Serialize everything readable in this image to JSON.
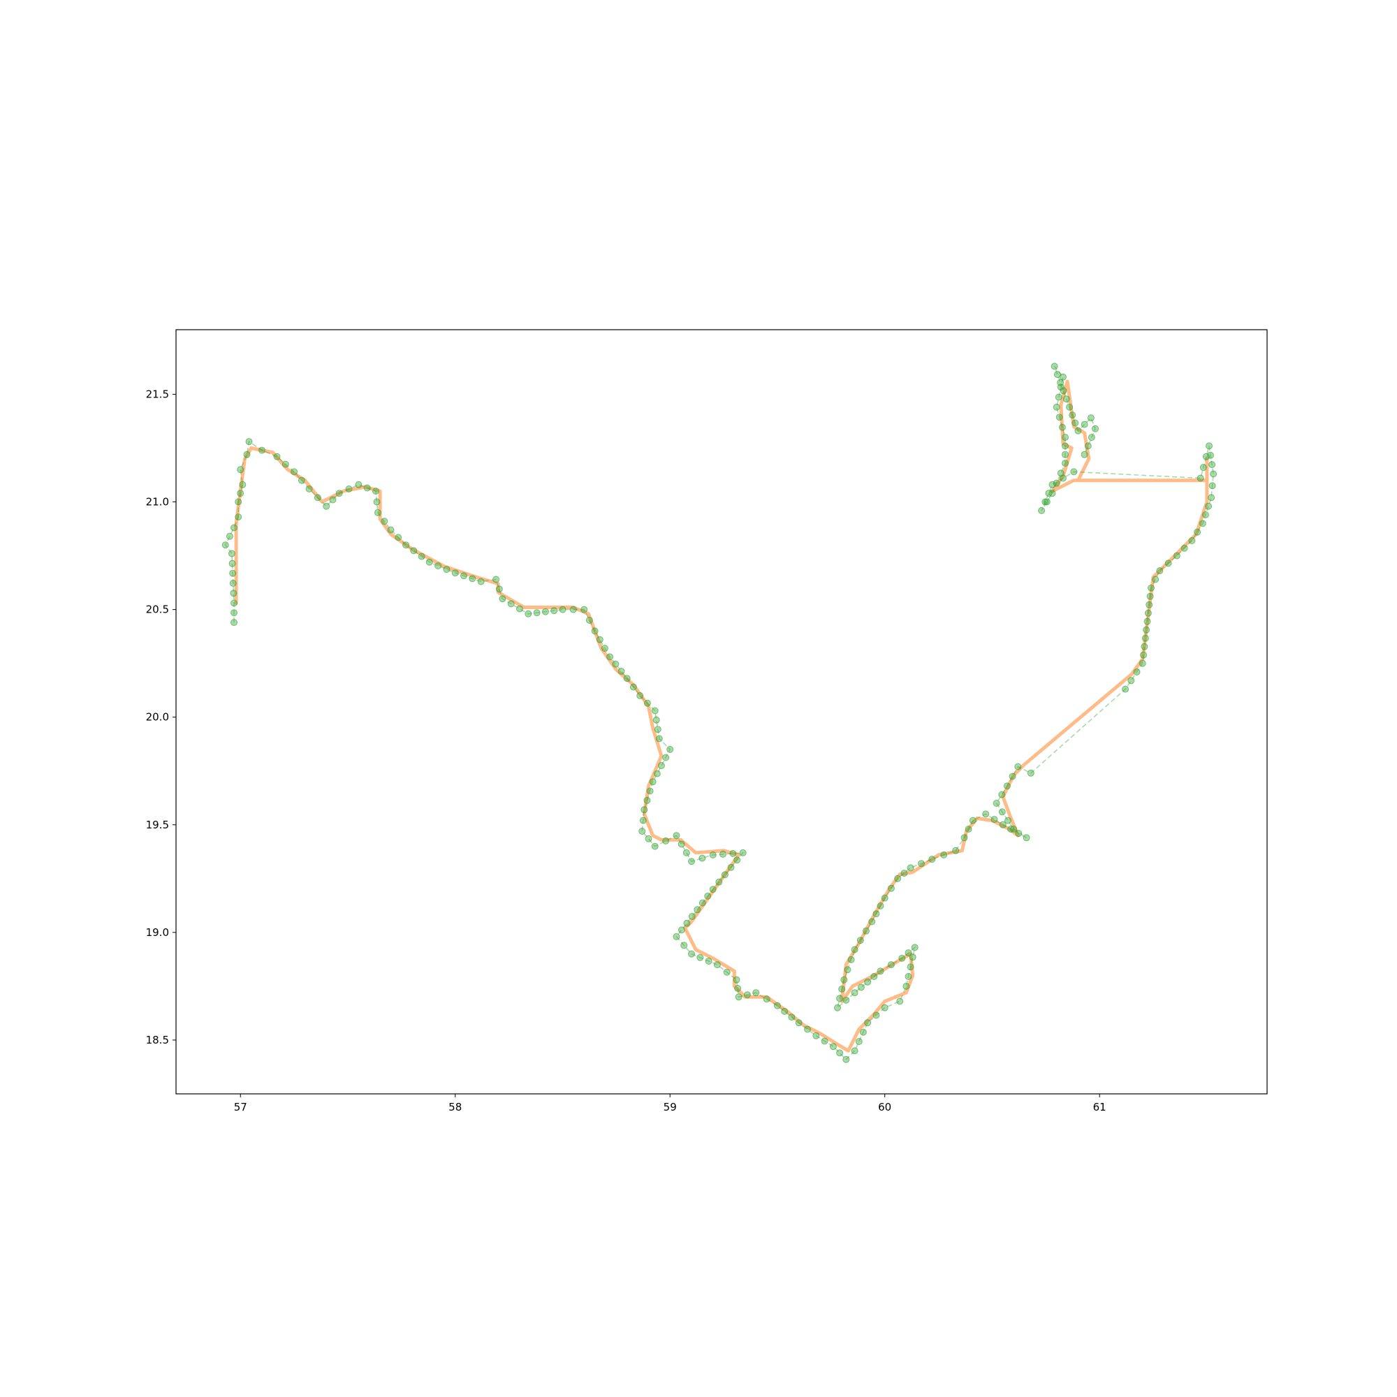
{
  "chart_data": {
    "type": "line",
    "title": "",
    "xlabel": "",
    "ylabel": "",
    "xlim": [
      56.7,
      61.78
    ],
    "ylim": [
      18.25,
      21.8
    ],
    "grid": false,
    "legend": "none",
    "x_ticks": [
      "57",
      "58",
      "59",
      "60",
      "61"
    ],
    "y_ticks": [
      "18.5",
      "19.0",
      "19.5",
      "20.0",
      "20.5",
      "21.0",
      "21.5"
    ],
    "series": [
      {
        "role": "smoothed-track",
        "color": "#ffbb88",
        "style": "solid",
        "points": [
          [
            56.98,
            20.53
          ],
          [
            56.98,
            20.9
          ],
          [
            57.0,
            21.05
          ],
          [
            57.02,
            21.2
          ],
          [
            57.05,
            21.25
          ],
          [
            57.15,
            21.23
          ],
          [
            57.22,
            21.15
          ],
          [
            57.3,
            21.1
          ],
          [
            57.38,
            21.0
          ],
          [
            57.48,
            21.05
          ],
          [
            57.58,
            21.07
          ],
          [
            57.65,
            21.05
          ],
          [
            57.65,
            20.92
          ],
          [
            57.7,
            20.85
          ],
          [
            57.8,
            20.78
          ],
          [
            57.95,
            20.7
          ],
          [
            58.1,
            20.65
          ],
          [
            58.2,
            20.62
          ],
          [
            58.2,
            20.58
          ],
          [
            58.32,
            20.51
          ],
          [
            58.55,
            20.51
          ],
          [
            58.62,
            20.48
          ],
          [
            58.68,
            20.32
          ],
          [
            58.75,
            20.22
          ],
          [
            58.83,
            20.15
          ],
          [
            58.9,
            20.05
          ],
          [
            58.92,
            19.95
          ],
          [
            58.96,
            19.82
          ],
          [
            58.9,
            19.68
          ],
          [
            58.88,
            19.55
          ],
          [
            58.92,
            19.45
          ],
          [
            58.96,
            19.43
          ],
          [
            59.05,
            19.43
          ],
          [
            59.12,
            19.37
          ],
          [
            59.25,
            19.38
          ],
          [
            59.32,
            19.36
          ],
          [
            59.1,
            19.05
          ],
          [
            59.07,
            19.02
          ],
          [
            59.12,
            18.92
          ],
          [
            59.2,
            18.88
          ],
          [
            59.3,
            18.82
          ],
          [
            59.3,
            18.75
          ],
          [
            59.35,
            18.7
          ],
          [
            59.45,
            18.7
          ],
          [
            59.55,
            18.63
          ],
          [
            59.62,
            18.57
          ],
          [
            59.7,
            18.53
          ],
          [
            59.78,
            18.48
          ],
          [
            59.83,
            18.45
          ],
          [
            59.88,
            18.55
          ],
          [
            59.95,
            18.62
          ],
          [
            60.0,
            18.68
          ],
          [
            60.05,
            18.7
          ],
          [
            60.1,
            18.72
          ],
          [
            60.13,
            18.8
          ],
          [
            60.12,
            18.9
          ],
          [
            60.05,
            18.86
          ],
          [
            59.95,
            18.8
          ],
          [
            59.85,
            18.75
          ],
          [
            59.8,
            18.68
          ],
          [
            59.82,
            18.85
          ],
          [
            59.88,
            18.95
          ],
          [
            59.95,
            19.08
          ],
          [
            60.02,
            19.2
          ],
          [
            60.07,
            19.27
          ],
          [
            60.13,
            19.28
          ],
          [
            60.25,
            19.36
          ],
          [
            60.36,
            19.38
          ],
          [
            60.38,
            19.47
          ],
          [
            60.43,
            19.53
          ],
          [
            60.5,
            19.52
          ],
          [
            60.58,
            19.48
          ],
          [
            60.62,
            19.45
          ],
          [
            60.58,
            19.55
          ],
          [
            60.55,
            19.63
          ],
          [
            60.6,
            19.73
          ],
          [
            60.65,
            19.78
          ],
          [
            61.15,
            20.2
          ],
          [
            61.2,
            20.27
          ],
          [
            61.25,
            20.65
          ],
          [
            61.3,
            20.7
          ],
          [
            61.4,
            20.8
          ],
          [
            61.45,
            20.85
          ],
          [
            61.5,
            21.0
          ],
          [
            61.5,
            21.1
          ],
          [
            61.5,
            21.2
          ],
          [
            61.5,
            21.1
          ],
          [
            61.45,
            21.1
          ],
          [
            60.95,
            21.1
          ],
          [
            60.88,
            21.1
          ],
          [
            60.78,
            21.05
          ],
          [
            60.83,
            21.12
          ],
          [
            60.87,
            21.25
          ],
          [
            60.83,
            21.27
          ],
          [
            60.82,
            21.45
          ],
          [
            60.85,
            21.56
          ],
          [
            60.88,
            21.35
          ],
          [
            60.93,
            21.32
          ],
          [
            60.95,
            21.2
          ],
          [
            60.9,
            21.1
          ]
        ]
      },
      {
        "role": "raw-gps-track",
        "color": "#2ca02c",
        "style": "dashed",
        "points": [
          [
            56.97,
            20.44
          ],
          [
            56.97,
            20.53
          ],
          [
            56.96,
            20.76
          ],
          [
            56.93,
            20.8
          ],
          [
            56.97,
            20.88
          ],
          [
            56.99,
            20.93
          ],
          [
            56.99,
            21.0
          ],
          [
            57.01,
            21.08
          ],
          [
            57.0,
            21.15
          ],
          [
            57.03,
            21.22
          ],
          [
            57.04,
            21.28
          ],
          [
            57.1,
            21.24
          ],
          [
            57.17,
            21.21
          ],
          [
            57.25,
            21.14
          ],
          [
            57.32,
            21.06
          ],
          [
            57.4,
            20.98
          ],
          [
            57.46,
            21.04
          ],
          [
            57.55,
            21.08
          ],
          [
            57.63,
            21.05
          ],
          [
            57.64,
            20.95
          ],
          [
            57.7,
            20.87
          ],
          [
            57.77,
            20.8
          ],
          [
            57.88,
            20.72
          ],
          [
            58.0,
            20.67
          ],
          [
            58.12,
            20.63
          ],
          [
            58.19,
            20.64
          ],
          [
            58.22,
            20.55
          ],
          [
            58.34,
            20.48
          ],
          [
            58.5,
            20.5
          ],
          [
            58.6,
            20.5
          ],
          [
            58.65,
            20.4
          ],
          [
            58.72,
            20.28
          ],
          [
            58.8,
            20.18
          ],
          [
            58.86,
            20.1
          ],
          [
            58.93,
            20.03
          ],
          [
            58.95,
            19.9
          ],
          [
            59.0,
            19.85
          ],
          [
            58.92,
            19.7
          ],
          [
            58.88,
            19.57
          ],
          [
            58.87,
            19.47
          ],
          [
            58.93,
            19.4
          ],
          [
            59.03,
            19.45
          ],
          [
            59.1,
            19.33
          ],
          [
            59.2,
            19.36
          ],
          [
            59.34,
            19.37
          ],
          [
            59.2,
            19.2
          ],
          [
            59.03,
            18.98
          ],
          [
            59.1,
            18.9
          ],
          [
            59.22,
            18.85
          ],
          [
            59.31,
            18.78
          ],
          [
            59.32,
            18.7
          ],
          [
            59.4,
            18.72
          ],
          [
            59.5,
            18.66
          ],
          [
            59.6,
            18.58
          ],
          [
            59.68,
            18.52
          ],
          [
            59.76,
            18.47
          ],
          [
            59.82,
            18.41
          ],
          [
            59.86,
            18.45
          ],
          [
            59.92,
            18.58
          ],
          [
            60.0,
            18.65
          ],
          [
            60.07,
            18.68
          ],
          [
            60.1,
            18.75
          ],
          [
            60.12,
            18.84
          ],
          [
            60.14,
            18.93
          ],
          [
            60.08,
            18.88
          ],
          [
            59.98,
            18.82
          ],
          [
            59.86,
            18.72
          ],
          [
            59.78,
            18.65
          ],
          [
            59.81,
            18.78
          ],
          [
            59.86,
            18.92
          ],
          [
            59.94,
            19.05
          ],
          [
            60.0,
            19.16
          ],
          [
            60.06,
            19.25
          ],
          [
            60.12,
            19.3
          ],
          [
            60.22,
            19.34
          ],
          [
            60.33,
            19.38
          ],
          [
            60.37,
            19.44
          ],
          [
            60.41,
            19.52
          ],
          [
            60.47,
            19.55
          ],
          [
            60.55,
            19.5
          ],
          [
            60.66,
            19.44
          ],
          [
            60.6,
            19.48
          ],
          [
            60.52,
            19.6
          ],
          [
            60.57,
            19.68
          ],
          [
            60.62,
            19.77
          ],
          [
            60.68,
            19.74
          ],
          [
            61.12,
            20.13
          ],
          [
            61.2,
            20.25
          ],
          [
            61.24,
            20.6
          ],
          [
            61.28,
            20.68
          ],
          [
            61.36,
            20.75
          ],
          [
            61.43,
            20.82
          ],
          [
            61.48,
            20.9
          ],
          [
            61.52,
            21.02
          ],
          [
            61.53,
            21.13
          ],
          [
            61.51,
            21.26
          ],
          [
            61.47,
            21.11
          ],
          [
            60.88,
            21.14
          ],
          [
            60.78,
            21.08
          ],
          [
            60.73,
            20.96
          ],
          [
            60.78,
            21.04
          ],
          [
            60.84,
            21.18
          ],
          [
            60.84,
            21.3
          ],
          [
            60.8,
            21.44
          ],
          [
            60.83,
            21.58
          ],
          [
            60.79,
            21.63
          ],
          [
            60.86,
            21.44
          ],
          [
            60.9,
            21.33
          ],
          [
            60.96,
            21.39
          ],
          [
            60.98,
            21.34
          ],
          [
            60.93,
            21.22
          ]
        ]
      }
    ]
  }
}
